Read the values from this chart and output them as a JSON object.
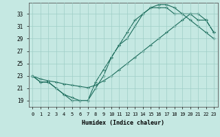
{
  "xlabel": "Humidex (Indice chaleur)",
  "bg_color": "#c5e8e2",
  "grid_color": "#9ecec6",
  "line_color": "#1a6b5a",
  "xlim": [
    -0.5,
    23.5
  ],
  "ylim": [
    18.0,
    34.8
  ],
  "xticks": [
    0,
    1,
    2,
    3,
    4,
    5,
    6,
    7,
    8,
    9,
    10,
    11,
    12,
    13,
    14,
    15,
    16,
    17,
    18,
    19,
    20,
    21,
    22,
    23
  ],
  "yticks": [
    19,
    21,
    23,
    25,
    27,
    29,
    31,
    33
  ],
  "line1_x": [
    0,
    1,
    2,
    3,
    4,
    5,
    6,
    7,
    8,
    9,
    10,
    11,
    12,
    13,
    14,
    15,
    16,
    17,
    18,
    19,
    20,
    21,
    22,
    23
  ],
  "line1_y": [
    23,
    22,
    22,
    21,
    20,
    19,
    19,
    19,
    21,
    23,
    26,
    28,
    29,
    31,
    33,
    34,
    34,
    34,
    33,
    33,
    32,
    31,
    30,
    29
  ],
  "line2_x": [
    0,
    1,
    2,
    3,
    4,
    5,
    6,
    7,
    8,
    9,
    10,
    11,
    12,
    13,
    14,
    15,
    16,
    17,
    18,
    19,
    20,
    21,
    22,
    23
  ],
  "line2_y": [
    23,
    22,
    22,
    21,
    20,
    19.5,
    19,
    19,
    22,
    24,
    26,
    28,
    30,
    32,
    33,
    34,
    34.5,
    34.5,
    34,
    33,
    33,
    32,
    32,
    30
  ],
  "line3_x": [
    0,
    1,
    2,
    3,
    4,
    5,
    6,
    7,
    8,
    9,
    10,
    11,
    12,
    13,
    14,
    15,
    16,
    17,
    18,
    19,
    20,
    21,
    22,
    23
  ],
  "line3_y": [
    23,
    22.5,
    22.2,
    22,
    21.7,
    21.5,
    21.3,
    21.1,
    21.5,
    22.2,
    23,
    24,
    25,
    26,
    27,
    28,
    29,
    30,
    31,
    32,
    33,
    33,
    32,
    30
  ]
}
